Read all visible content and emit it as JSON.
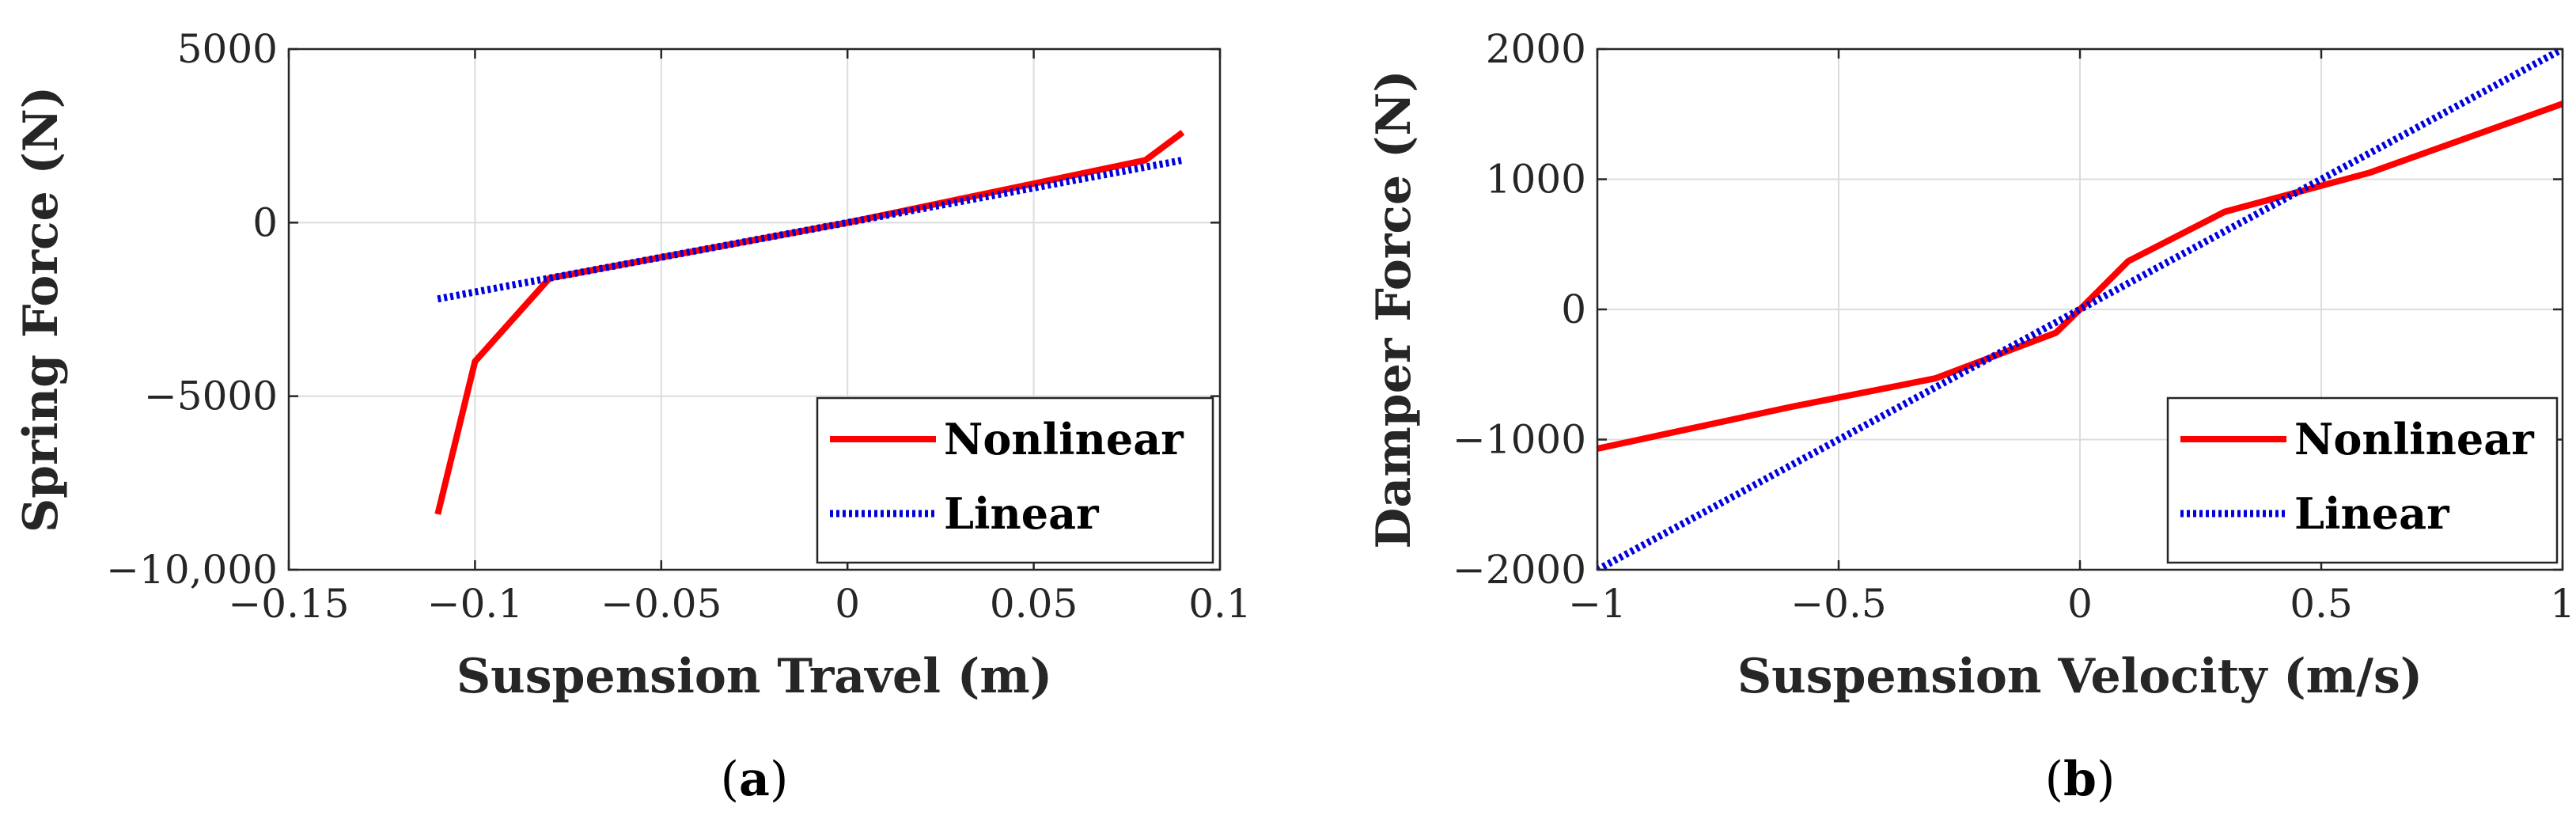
{
  "chart_data": [
    {
      "type": "line",
      "panel_label": "a",
      "xlabel": "Suspension Travel (m)",
      "ylabel": "Spring Force (N)",
      "xlim": [
        -0.15,
        0.1
      ],
      "ylim": [
        -10000,
        5000
      ],
      "xticks": [
        -0.15,
        -0.1,
        -0.05,
        0,
        0.05,
        0.1
      ],
      "xtick_labels": [
        "−0.15",
        "−0.1",
        "−0.05",
        "0",
        "0.05",
        "0.1"
      ],
      "yticks": [
        -10000,
        -5000,
        0,
        5000
      ],
      "ytick_labels": [
        "−10,000",
        "−5000",
        "0",
        "5000"
      ],
      "grid": true,
      "legend_position": "bottom-right",
      "series": [
        {
          "name": "Nonlinear",
          "color": "#ff0000",
          "style": "solid",
          "x": [
            -0.11,
            -0.1,
            -0.08,
            0,
            0.08,
            0.09
          ],
          "y": [
            -8400,
            -4000,
            -1600,
            0,
            1800,
            2600
          ]
        },
        {
          "name": "Linear",
          "color": "#0000dd",
          "style": "dotted",
          "x": [
            -0.11,
            0.09
          ],
          "y": [
            -2200,
            1800
          ]
        }
      ]
    },
    {
      "type": "line",
      "panel_label": "b",
      "xlabel": "Suspension Velocity (m/s)",
      "ylabel": "Damper Force (N)",
      "xlim": [
        -1,
        1
      ],
      "ylim": [
        -2000,
        2000
      ],
      "xticks": [
        -1,
        -0.5,
        0,
        0.5,
        1
      ],
      "xtick_labels": [
        "−1",
        "−0.5",
        "0",
        "0.5",
        "1"
      ],
      "yticks": [
        -2000,
        -1000,
        0,
        1000,
        2000
      ],
      "ytick_labels": [
        "−2000",
        "−1000",
        "0",
        "1000",
        "2000"
      ],
      "grid": true,
      "legend_position": "bottom-right",
      "series": [
        {
          "name": "Nonlinear",
          "color": "#ff0000",
          "style": "solid",
          "x": [
            -1,
            -0.6,
            -0.3,
            -0.05,
            0,
            0.1,
            0.3,
            0.6,
            1
          ],
          "y": [
            -1070,
            -750,
            -530,
            -180,
            0,
            370,
            750,
            1050,
            1580
          ]
        },
        {
          "name": "Linear",
          "color": "#0000dd",
          "style": "dotted",
          "x": [
            -1,
            1
          ],
          "y": [
            -2000,
            2000
          ]
        }
      ]
    }
  ]
}
